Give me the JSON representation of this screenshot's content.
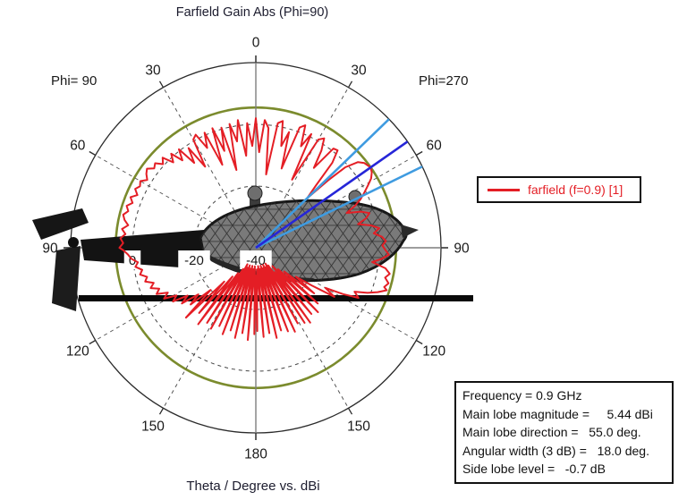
{
  "header": {
    "title": "Farfield Gain Abs (Phi=90)"
  },
  "polar": {
    "phi_left": "Phi= 90",
    "phi_right": "Phi=270"
  },
  "footer": {
    "caption": "Theta / Degree vs. dBi"
  },
  "legend": {
    "label": "farfield (f=0.9) [1]"
  },
  "info_box": {
    "lines": [
      "Frequency = 0.9 GHz",
      "Main lobe magnitude =     5.44 dBi",
      "Main lobe direction =   55.0 deg.",
      "Angular width (3 dB) =   18.0 deg.",
      "Side lobe level =   -0.7 dB"
    ]
  },
  "stats": {
    "frequency": "0.9 GHz",
    "main_lobe_magnitude": "5.44 dBi",
    "main_lobe_direction": "55.0 deg.",
    "angular_width_3db": "18.0 deg.",
    "side_lobe_level": "-0.7 dB"
  },
  "colors": {
    "curve": "#e41e25",
    "main_lobe_line": "#2626d8",
    "angular_width_line": "#3f9be0",
    "level_ring": "#7b8b2d",
    "outer_ring": "#2b2b2b",
    "grid_dashed": "#444444",
    "cross_axis": "#7d7d7d",
    "text": "#1a1a1a"
  },
  "chart_data": {
    "type": "line",
    "subtype": "polar",
    "title": "Farfield Gain Abs (Phi=90)",
    "angle_label": "Theta / Degree",
    "value_label": "dBi",
    "angle_labels_deg": [
      0,
      30,
      60,
      90,
      120,
      150,
      180
    ],
    "r_min_db": -40,
    "r_max_db": 20,
    "grid_circles_db": [
      0,
      -20
    ],
    "radial_tick_labels": [
      {
        "db": 0,
        "label": "0"
      },
      {
        "db": -20,
        "label": "-20"
      },
      {
        "db": -40,
        "label": "-40"
      }
    ],
    "level_ring_db": 5.44,
    "main_lobe_deg": 55.0,
    "main_lobe_db": 5.44,
    "angular_width_deg": 18.0,
    "side_lobe_level_db": -0.7,
    "legend_position": "right",
    "series": [
      {
        "name": "farfield (f=0.9) [1]",
        "points": [
          [
            0,
            2
          ],
          [
            2,
            -9
          ],
          [
            4,
            1.5
          ],
          [
            6,
            -1
          ],
          [
            8,
            -16
          ],
          [
            10,
            1
          ],
          [
            12,
            2
          ],
          [
            14,
            -6
          ],
          [
            16,
            -1
          ],
          [
            18,
            -13
          ],
          [
            20,
            1.5
          ],
          [
            22,
            2.8
          ],
          [
            24,
            -4
          ],
          [
            26,
            1
          ],
          [
            28,
            -15
          ],
          [
            30,
            0.5
          ],
          [
            32,
            1.8
          ],
          [
            34,
            -2
          ],
          [
            36,
            -8
          ],
          [
            38,
            0.8
          ],
          [
            40,
            1.2
          ],
          [
            42,
            -3
          ],
          [
            44,
            -12
          ],
          [
            46,
            -17
          ],
          [
            47,
            -8
          ],
          [
            48,
            -1
          ],
          [
            50,
            3.2
          ],
          [
            52,
            4.6
          ],
          [
            55,
            5.4
          ],
          [
            57,
            4.8
          ],
          [
            59,
            3.6
          ],
          [
            61,
            1.5
          ],
          [
            63,
            -0.5
          ],
          [
            65,
            -2.5
          ],
          [
            67,
            -5
          ],
          [
            69,
            -8.5
          ],
          [
            71,
            -4
          ],
          [
            73,
            -1.5
          ],
          [
            75,
            -3
          ],
          [
            77,
            -6
          ],
          [
            79,
            -2
          ],
          [
            81,
            0.5
          ],
          [
            83,
            -1.5
          ],
          [
            85,
            1
          ],
          [
            87,
            2.2
          ],
          [
            89,
            1
          ],
          [
            91,
            2
          ],
          [
            93,
            3.2
          ],
          [
            95,
            1
          ],
          [
            97,
            -2
          ],
          [
            99,
            2.5
          ],
          [
            101,
            4.2
          ],
          [
            103,
            3
          ],
          [
            105,
            4.5
          ],
          [
            107,
            3.5
          ],
          [
            108,
            4.6
          ],
          [
            110,
            2
          ],
          [
            112,
            -1
          ],
          [
            114,
            -5
          ],
          [
            116,
            -3
          ],
          [
            118,
            -8
          ],
          [
            120,
            -14
          ],
          [
            122,
            -10
          ],
          [
            124,
            -18
          ],
          [
            126,
            -24
          ],
          [
            128,
            -16
          ],
          [
            130,
            -28
          ],
          [
            132,
            -13
          ],
          [
            134,
            -30
          ],
          [
            136,
            -11
          ],
          [
            138,
            -32
          ],
          [
            140,
            -12
          ],
          [
            142,
            -30
          ],
          [
            144,
            -10
          ],
          [
            145,
            -33
          ],
          [
            147,
            -11
          ],
          [
            149,
            -34
          ],
          [
            151,
            -12
          ],
          [
            153,
            -33
          ],
          [
            155,
            -10
          ],
          [
            157,
            -34
          ],
          [
            159,
            -11
          ],
          [
            161,
            -33
          ],
          [
            163,
            -12
          ],
          [
            165,
            -34
          ],
          [
            167,
            -10
          ],
          [
            169,
            -33
          ],
          [
            171,
            -12
          ],
          [
            173,
            -34
          ],
          [
            175,
            -11
          ],
          [
            177,
            -33
          ],
          [
            179,
            -13
          ],
          [
            180,
            -31
          ],
          [
            -179,
            -12
          ],
          [
            -177,
            -34
          ],
          [
            -175,
            -10
          ],
          [
            -173,
            -33
          ],
          [
            -171,
            -12
          ],
          [
            -169,
            -34
          ],
          [
            -167,
            -10
          ],
          [
            -165,
            -33
          ],
          [
            -163,
            -12
          ],
          [
            -161,
            -34
          ],
          [
            -159,
            -10
          ],
          [
            -157,
            -33
          ],
          [
            -155,
            -12
          ],
          [
            -153,
            -34
          ],
          [
            -151,
            -10
          ],
          [
            -149,
            -32
          ],
          [
            -147,
            -11
          ],
          [
            -145,
            -30
          ],
          [
            -143,
            -9
          ],
          [
            -141,
            -28
          ],
          [
            -139,
            -12
          ],
          [
            -137,
            -25
          ],
          [
            -135,
            -8
          ],
          [
            -133,
            -20
          ],
          [
            -131,
            -12
          ],
          [
            -129,
            -16
          ],
          [
            -127,
            -10
          ],
          [
            -125,
            -13
          ],
          [
            -123,
            -8
          ],
          [
            -121,
            -10
          ],
          [
            -119,
            -6
          ],
          [
            -117,
            -8
          ],
          [
            -115,
            -4.5
          ],
          [
            -113,
            -6
          ],
          [
            -111,
            -3.5
          ],
          [
            -109,
            -5
          ],
          [
            -107,
            -2.5
          ],
          [
            -105,
            -3.5
          ],
          [
            -103,
            -1.5
          ],
          [
            -101,
            -2.5
          ],
          [
            -99,
            -0.5
          ],
          [
            -97,
            -1.5
          ],
          [
            -95,
            0.5
          ],
          [
            -93,
            1.5
          ],
          [
            -91,
            3
          ],
          [
            -90,
            4.2
          ],
          [
            -88,
            3
          ],
          [
            -86,
            4
          ],
          [
            -84,
            2.5
          ],
          [
            -82,
            3.8
          ],
          [
            -80,
            2
          ],
          [
            -78,
            3.5
          ],
          [
            -76,
            4.3
          ],
          [
            -74,
            3
          ],
          [
            -72,
            4
          ],
          [
            -70,
            2.5
          ],
          [
            -68,
            3.8
          ],
          [
            -66,
            2
          ],
          [
            -64,
            3.5
          ],
          [
            -62,
            2.5
          ],
          [
            -60,
            3.2
          ],
          [
            -58,
            1.5
          ],
          [
            -56,
            2.8
          ],
          [
            -54,
            3.6
          ],
          [
            -52,
            1.8
          ],
          [
            -50,
            2.6
          ],
          [
            -48,
            0.5
          ],
          [
            -46,
            2
          ],
          [
            -44,
            -1.5
          ],
          [
            -42,
            1
          ],
          [
            -40,
            -3
          ],
          [
            -38,
            0.5
          ],
          [
            -36,
            -6
          ],
          [
            -34,
            -1
          ],
          [
            -32,
            -9
          ],
          [
            -30,
            0.5
          ],
          [
            -28,
            1.5
          ],
          [
            -26,
            -4
          ],
          [
            -24,
            0.8
          ],
          [
            -22,
            -11
          ],
          [
            -20,
            1.2
          ],
          [
            -18,
            -7
          ],
          [
            -16,
            0.5
          ],
          [
            -14,
            -14
          ],
          [
            -12,
            1
          ],
          [
            -10,
            -5
          ],
          [
            -8,
            1.8
          ],
          [
            -6,
            -10
          ],
          [
            -4,
            0.5
          ],
          [
            -2,
            -7
          ]
        ]
      }
    ]
  }
}
